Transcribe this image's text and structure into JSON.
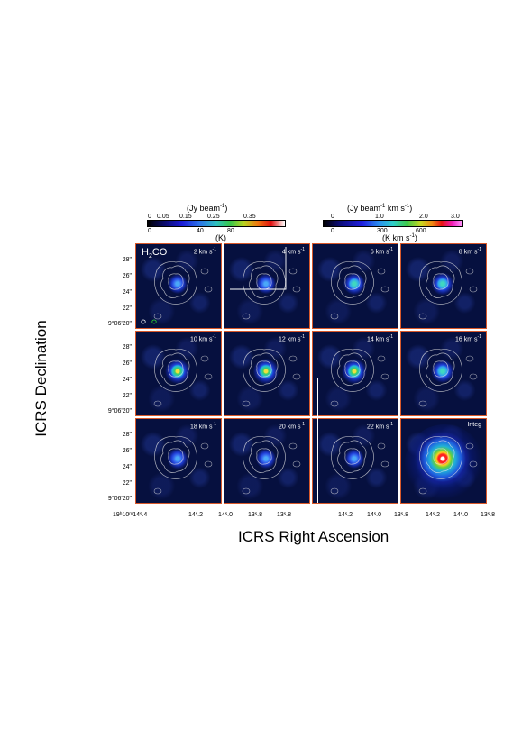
{
  "colorbar_left": {
    "top_unit": "(Jy beam",
    "top_unit_sup": "-1",
    "top_unit_end": ")",
    "top_ticks": [
      "0",
      "0.05",
      "0.15",
      "0.25",
      "0.35"
    ],
    "bottom_ticks": [
      "0",
      "40",
      "80"
    ],
    "bottom_unit": "(K)"
  },
  "colorbar_right": {
    "top_unit": "(Jy beam",
    "top_unit_sup": "-1",
    "top_unit_mid": " km s",
    "top_unit_sup2": "-1",
    "top_unit_end": ")",
    "top_ticks": [
      "0",
      "1.0",
      "2.0",
      "3.0"
    ],
    "bottom_ticks": [
      "0",
      "300",
      "600"
    ],
    "bottom_unit": "(K  km s",
    "bottom_unit_sup": "-1",
    "bottom_unit_end": ")"
  },
  "molecule": {
    "base": "H",
    "sub": "2",
    "rest": "CO"
  },
  "panels": [
    {
      "label": "2 km s",
      "sup": "-1",
      "intensity": 0.35
    },
    {
      "label": "4 km s",
      "sup": "-1",
      "intensity": 0.4
    },
    {
      "label": "6 km s",
      "sup": "-1",
      "intensity": 0.55
    },
    {
      "label": "8 km s",
      "sup": "-1",
      "intensity": 0.6
    },
    {
      "label": "10 km s",
      "sup": "-1",
      "intensity": 0.85
    },
    {
      "label": "12 km s",
      "sup": "-1",
      "intensity": 0.9
    },
    {
      "label": "14 km s",
      "sup": "-1",
      "intensity": 0.85
    },
    {
      "label": "16 km s",
      "sup": "-1",
      "intensity": 0.65
    },
    {
      "label": "18 km s",
      "sup": "-1",
      "intensity": 0.45
    },
    {
      "label": "20 km s",
      "sup": "-1",
      "intensity": 0.4
    },
    {
      "label": "22 km s",
      "sup": "-1",
      "intensity": 0.35
    },
    {
      "label": "Integ",
      "sup": "",
      "intensity": 1.0
    }
  ],
  "y_ticks": [
    "28\"",
    "26\"",
    "24\"",
    "22\"",
    "9°06'20\""
  ],
  "x_ticks": [
    "19h10m14s.4",
    "14s.2",
    "14s.0",
    "13s.8"
  ],
  "x_ticks_display": [
    "19ʰ10ᵐ14ˢ.4",
    "14ˢ.2",
    "14ˢ.0",
    "13ˢ.8"
  ],
  "xlabel": "ICRS Right Ascension",
  "ylabel": "ICRS Declination"
}
